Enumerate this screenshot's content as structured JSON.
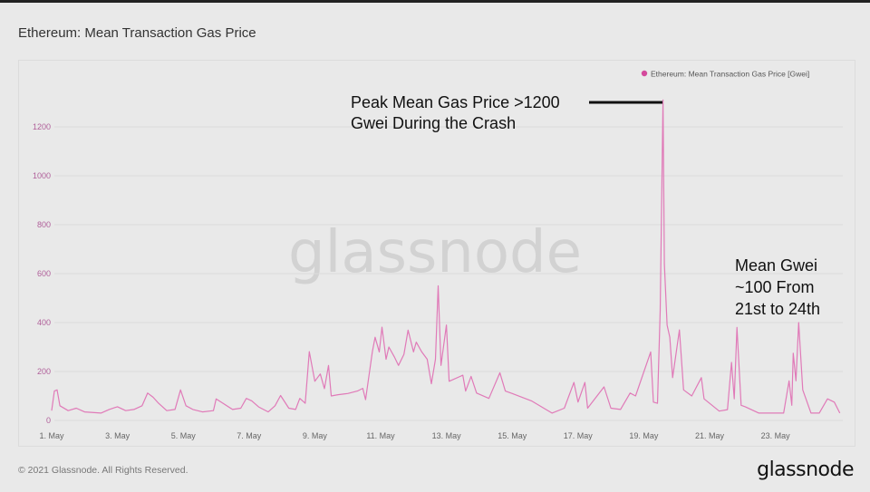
{
  "title": "Ethereum: Mean Transaction Gas Price",
  "footer": {
    "copyright": "© 2021 Glassnode. All Rights Reserved.",
    "logo": "glassnode"
  },
  "watermark": "glassnode",
  "colors": {
    "series": "#e07ab8",
    "legend_dot": "#d4499c",
    "ytick": "#b0609a",
    "background": "#e9e9e9"
  },
  "chart_data": {
    "type": "line",
    "title": "Ethereum: Mean Transaction Gas Price",
    "xlabel": "",
    "ylabel": "",
    "ylim": [
      0,
      1200
    ],
    "xlim": [
      "2021-05-01T00:00",
      "2021-05-25T00:00"
    ],
    "grid": true,
    "legend_placement": "top-right",
    "yticks": [
      "0",
      "200",
      "400",
      "600",
      "800",
      "1000",
      "1200"
    ],
    "xticks": [
      {
        "date": "2021-05-01",
        "label": "1. May"
      },
      {
        "date": "2021-05-03",
        "label": "3. May"
      },
      {
        "date": "2021-05-05",
        "label": "5. May"
      },
      {
        "date": "2021-05-07",
        "label": "7. May"
      },
      {
        "date": "2021-05-09",
        "label": "9. May"
      },
      {
        "date": "2021-05-11",
        "label": "11. May"
      },
      {
        "date": "2021-05-13",
        "label": "13. May"
      },
      {
        "date": "2021-05-15",
        "label": "15. May"
      },
      {
        "date": "2021-05-17",
        "label": "17. May"
      },
      {
        "date": "2021-05-19",
        "label": "19. May"
      },
      {
        "date": "2021-05-21",
        "label": "21. May"
      },
      {
        "date": "2021-05-23",
        "label": "23. May"
      }
    ],
    "annotations": [
      {
        "lines": [
          "Peak Mean Gas Price >1200",
          "Gwei During the Crash"
        ]
      },
      {
        "lines": [
          "Mean Gwei",
          "~100 From",
          "21st to 24th"
        ]
      }
    ],
    "series": [
      {
        "name": "Ethereum: Mean Transaction Gas Price [Gwei]",
        "points": [
          [
            "2021-05-01T00:00",
            40
          ],
          [
            "2021-05-01T02:00",
            120
          ],
          [
            "2021-05-01T04:00",
            125
          ],
          [
            "2021-05-01T06:00",
            60
          ],
          [
            "2021-05-01T12:00",
            40
          ],
          [
            "2021-05-01T18:00",
            50
          ],
          [
            "2021-05-02T00:00",
            35
          ],
          [
            "2021-05-02T12:00",
            30
          ],
          [
            "2021-05-02T18:00",
            45
          ],
          [
            "2021-05-03T00:00",
            56
          ],
          [
            "2021-05-03T06:00",
            40
          ],
          [
            "2021-05-03T12:00",
            45
          ],
          [
            "2021-05-03T18:00",
            60
          ],
          [
            "2021-05-03T22:00",
            112
          ],
          [
            "2021-05-04T02:00",
            95
          ],
          [
            "2021-05-04T06:00",
            70
          ],
          [
            "2021-05-04T12:00",
            40
          ],
          [
            "2021-05-04T18:00",
            45
          ],
          [
            "2021-05-04T22:00",
            125
          ],
          [
            "2021-05-05T02:00",
            60
          ],
          [
            "2021-05-05T07:00",
            45
          ],
          [
            "2021-05-05T14:00",
            35
          ],
          [
            "2021-05-05T22:00",
            40
          ],
          [
            "2021-05-06T00:00",
            88
          ],
          [
            "2021-05-06T05:00",
            70
          ],
          [
            "2021-05-06T12:00",
            45
          ],
          [
            "2021-05-06T18:00",
            50
          ],
          [
            "2021-05-06T22:00",
            90
          ],
          [
            "2021-05-07T02:00",
            80
          ],
          [
            "2021-05-07T07:00",
            55
          ],
          [
            "2021-05-07T14:00",
            35
          ],
          [
            "2021-05-07T19:00",
            60
          ],
          [
            "2021-05-07T23:00",
            102
          ],
          [
            "2021-05-08T05:00",
            50
          ],
          [
            "2021-05-08T10:00",
            45
          ],
          [
            "2021-05-08T13:00",
            90
          ],
          [
            "2021-05-08T17:00",
            70
          ],
          [
            "2021-05-08T20:00",
            281
          ],
          [
            "2021-05-09T00:00",
            160
          ],
          [
            "2021-05-09T04:00",
            190
          ],
          [
            "2021-05-09T07:00",
            130
          ],
          [
            "2021-05-09T10:00",
            225
          ],
          [
            "2021-05-09T12:00",
            100
          ],
          [
            "2021-05-09T17:00",
            105
          ],
          [
            "2021-05-10T00:00",
            110
          ],
          [
            "2021-05-10T07:00",
            120
          ],
          [
            "2021-05-10T11:00",
            131
          ],
          [
            "2021-05-10T13:00",
            85
          ],
          [
            "2021-05-10T18:00",
            281
          ],
          [
            "2021-05-10T20:00",
            340
          ],
          [
            "2021-05-10T23:00",
            280
          ],
          [
            "2021-05-11T01:00",
            381
          ],
          [
            "2021-05-11T04:00",
            250
          ],
          [
            "2021-05-11T06:00",
            300
          ],
          [
            "2021-05-11T10:00",
            260
          ],
          [
            "2021-05-11T13:00",
            225
          ],
          [
            "2021-05-11T17:00",
            270
          ],
          [
            "2021-05-11T20:00",
            369
          ],
          [
            "2021-05-12T00:00",
            280
          ],
          [
            "2021-05-12T02:00",
            320
          ],
          [
            "2021-05-12T06:00",
            280
          ],
          [
            "2021-05-12T10:00",
            250
          ],
          [
            "2021-05-12T13:00",
            150
          ],
          [
            "2021-05-12T16:00",
            250
          ],
          [
            "2021-05-12T18:00",
            550
          ],
          [
            "2021-05-12T20:00",
            225
          ],
          [
            "2021-05-13T00:00",
            390
          ],
          [
            "2021-05-13T02:00",
            160
          ],
          [
            "2021-05-13T12:00",
            185
          ],
          [
            "2021-05-13T14:00",
            120
          ],
          [
            "2021-05-13T18:00",
            180
          ],
          [
            "2021-05-13T22:00",
            112
          ],
          [
            "2021-05-14T07:00",
            90
          ],
          [
            "2021-05-14T15:00",
            195
          ],
          [
            "2021-05-14T19:00",
            120
          ],
          [
            "2021-05-15T00:00",
            110
          ],
          [
            "2021-05-15T14:00",
            80
          ],
          [
            "2021-05-16T05:00",
            30
          ],
          [
            "2021-05-16T14:00",
            50
          ],
          [
            "2021-05-16T21:00",
            155
          ],
          [
            "2021-05-17T00:00",
            75
          ],
          [
            "2021-05-17T05:00",
            155
          ],
          [
            "2021-05-17T07:00",
            50
          ],
          [
            "2021-05-17T19:00",
            137
          ],
          [
            "2021-05-18T00:00",
            50
          ],
          [
            "2021-05-18T07:00",
            45
          ],
          [
            "2021-05-18T14:00",
            112
          ],
          [
            "2021-05-18T18:00",
            100
          ],
          [
            "2021-05-19T05:00",
            280
          ],
          [
            "2021-05-19T07:00",
            75
          ],
          [
            "2021-05-19T10:00",
            70
          ],
          [
            "2021-05-19T12:00",
            450
          ],
          [
            "2021-05-19T14:00",
            1310
          ],
          [
            "2021-05-19T15:00",
            640
          ],
          [
            "2021-05-19T17:00",
            390
          ],
          [
            "2021-05-19T19:00",
            340
          ],
          [
            "2021-05-19T21:00",
            175
          ],
          [
            "2021-05-20T02:00",
            370
          ],
          [
            "2021-05-20T05:00",
            125
          ],
          [
            "2021-05-20T11:00",
            100
          ],
          [
            "2021-05-20T18:00",
            175
          ],
          [
            "2021-05-20T20:00",
            88
          ],
          [
            "2021-05-21T07:00",
            38
          ],
          [
            "2021-05-21T13:00",
            44
          ],
          [
            "2021-05-21T16:00",
            237
          ],
          [
            "2021-05-21T18:00",
            88
          ],
          [
            "2021-05-21T20:00",
            380
          ],
          [
            "2021-05-21T23:00",
            62
          ],
          [
            "2021-05-22T02:00",
            56
          ],
          [
            "2021-05-22T12:00",
            30
          ],
          [
            "2021-05-23T06:00",
            30
          ],
          [
            "2021-05-23T10:00",
            162
          ],
          [
            "2021-05-23T12:00",
            62
          ],
          [
            "2021-05-23T13:00",
            275
          ],
          [
            "2021-05-23T15:00",
            162
          ],
          [
            "2021-05-23T17:00",
            400
          ],
          [
            "2021-05-23T20:00",
            125
          ],
          [
            "2021-05-24T02:00",
            30
          ],
          [
            "2021-05-24T08:00",
            30
          ],
          [
            "2021-05-24T14:00",
            88
          ],
          [
            "2021-05-24T19:00",
            75
          ],
          [
            "2021-05-24T23:00",
            30
          ]
        ]
      }
    ]
  }
}
